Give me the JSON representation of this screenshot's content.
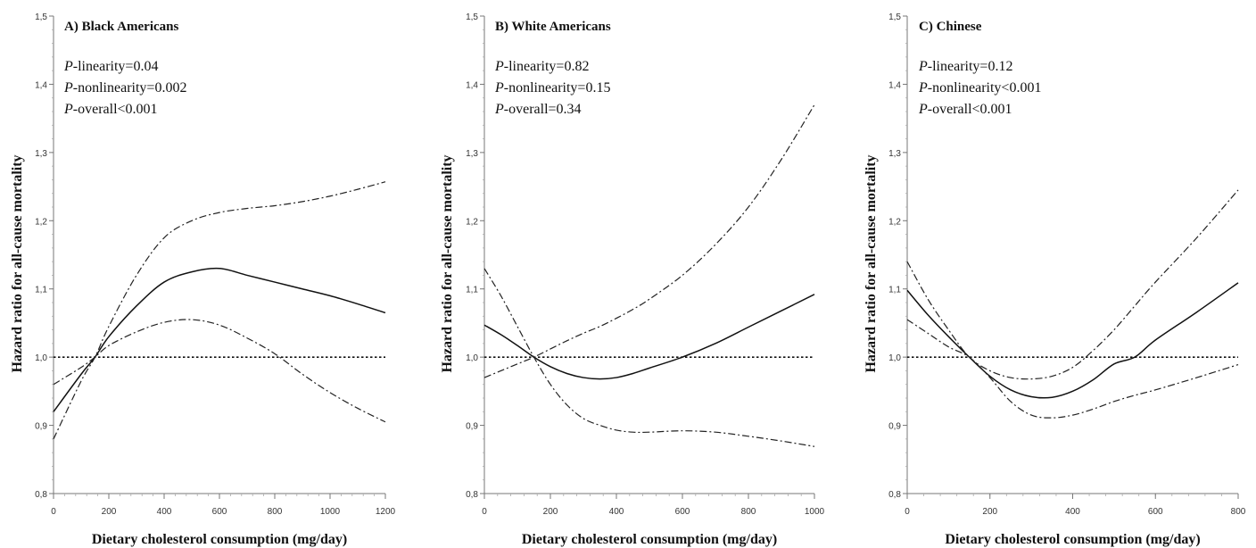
{
  "chart_data": [
    {
      "type": "line",
      "title": "A) Black Americans",
      "xlabel": "Dietary cholesterol consumption (mg/day)",
      "ylabel": "Hazard ratio for all-cause mortality",
      "xlim": [
        0,
        1200
      ],
      "ylim": [
        0.8,
        1.5
      ],
      "xticks": [
        0,
        200,
        400,
        600,
        800,
        1000,
        1200
      ],
      "yticks": [
        0.8,
        0.9,
        1.0,
        1.1,
        1.2,
        1.3,
        1.4,
        1.5
      ],
      "ytick_labels": [
        "0,8",
        "0,9",
        "1,0",
        "1,1",
        "1,2",
        "1,3",
        "1,4",
        "1,5"
      ],
      "reference_y": 1.0,
      "annotations": [
        {
          "p": "P",
          "text": "-linearity=0.04"
        },
        {
          "p": "P",
          "text": "-nonlinearity=0.002"
        },
        {
          "p": "P",
          "text": "-overall<0.001"
        }
      ],
      "series": [
        {
          "style": "solid",
          "x": [
            0,
            100,
            150,
            200,
            300,
            400,
            500,
            600,
            700,
            800,
            900,
            1000,
            1100,
            1200
          ],
          "y": [
            0.92,
            0.975,
            1.0,
            1.03,
            1.075,
            1.11,
            1.125,
            1.13,
            1.12,
            1.11,
            1.1,
            1.09,
            1.078,
            1.065
          ]
        },
        {
          "style": "dash-dot",
          "x": [
            0,
            100,
            150,
            200,
            300,
            400,
            500,
            600,
            700,
            800,
            900,
            1000,
            1100,
            1200
          ],
          "y": [
            0.88,
            0.965,
            1.0,
            1.045,
            1.12,
            1.175,
            1.2,
            1.212,
            1.218,
            1.222,
            1.228,
            1.236,
            1.246,
            1.257
          ]
        },
        {
          "style": "dash-dot",
          "x": [
            0,
            100,
            150,
            200,
            300,
            400,
            500,
            600,
            700,
            800,
            900,
            1000,
            1100,
            1200
          ],
          "y": [
            0.96,
            0.985,
            1.0,
            1.017,
            1.037,
            1.051,
            1.055,
            1.047,
            1.028,
            1.005,
            0.975,
            0.948,
            0.925,
            0.905
          ]
        }
      ]
    },
    {
      "type": "line",
      "title": "B) White Americans",
      "xlabel": "Dietary cholesterol consumption (mg/day)",
      "ylabel": "Hazard ratio for all-cause mortality",
      "xlim": [
        0,
        1000
      ],
      "ylim": [
        0.8,
        1.5
      ],
      "xticks": [
        0,
        200,
        400,
        600,
        800,
        1000
      ],
      "yticks": [
        0.8,
        0.9,
        1.0,
        1.1,
        1.2,
        1.3,
        1.4,
        1.5
      ],
      "ytick_labels": [
        "0,8",
        "0,9",
        "1,0",
        "1,1",
        "1,2",
        "1,3",
        "1,4",
        "1,5"
      ],
      "reference_y": 1.0,
      "annotations": [
        {
          "p": "P",
          "text": "-linearity=0.82"
        },
        {
          "p": "P",
          "text": "-nonlinearity=0.15"
        },
        {
          "p": "P",
          "text": "-overall=0.34"
        }
      ],
      "series": [
        {
          "style": "solid",
          "x": [
            0,
            50,
            100,
            150,
            200,
            250,
            300,
            350,
            400,
            450,
            500,
            600,
            700,
            800,
            900,
            1000
          ],
          "y": [
            1.047,
            1.033,
            1.017,
            1.0,
            0.986,
            0.976,
            0.97,
            0.968,
            0.97,
            0.976,
            0.984,
            1.0,
            1.02,
            1.044,
            1.068,
            1.092
          ]
        },
        {
          "style": "dash-dot",
          "x": [
            0,
            50,
            100,
            150,
            200,
            250,
            300,
            350,
            400,
            450,
            500,
            600,
            700,
            800,
            900,
            1000
          ],
          "y": [
            0.97,
            0.98,
            0.99,
            1.0,
            1.012,
            1.024,
            1.035,
            1.045,
            1.057,
            1.07,
            1.085,
            1.12,
            1.165,
            1.22,
            1.29,
            1.37
          ]
        },
        {
          "style": "dash-dot",
          "x": [
            0,
            50,
            100,
            150,
            200,
            250,
            300,
            350,
            400,
            450,
            500,
            600,
            700,
            800,
            900,
            1000
          ],
          "y": [
            1.13,
            1.09,
            1.045,
            1.0,
            0.96,
            0.93,
            0.91,
            0.9,
            0.893,
            0.89,
            0.89,
            0.892,
            0.89,
            0.884,
            0.877,
            0.869
          ]
        }
      ]
    },
    {
      "type": "line",
      "title": "C) Chinese",
      "xlabel": "Dietary cholesterol consumption (mg/day)",
      "ylabel": "Hazard ratio for all-cause mortality",
      "xlim": [
        0,
        800
      ],
      "ylim": [
        0.8,
        1.5
      ],
      "xticks": [
        0,
        200,
        400,
        600,
        800
      ],
      "yticks": [
        0.8,
        0.9,
        1.0,
        1.1,
        1.2,
        1.3,
        1.4,
        1.5
      ],
      "ytick_labels": [
        "0,8",
        "0,9",
        "1,0",
        "1,1",
        "1,2",
        "1,3",
        "1,4",
        "1,5"
      ],
      "reference_y": 1.0,
      "annotations": [
        {
          "p": "P",
          "text": "-linearity=0.12"
        },
        {
          "p": "P",
          "text": "-nonlinearity<0.001"
        },
        {
          "p": "P",
          "text": "-overall<0.001"
        }
      ],
      "series": [
        {
          "style": "solid",
          "x": [
            0,
            50,
            100,
            150,
            200,
            250,
            300,
            350,
            400,
            450,
            500,
            550,
            600,
            700,
            800
          ],
          "y": [
            1.098,
            1.062,
            1.03,
            1.0,
            0.972,
            0.952,
            0.942,
            0.941,
            0.95,
            0.967,
            0.99,
            1.0,
            1.025,
            1.066,
            1.109
          ]
        },
        {
          "style": "dash-dot",
          "x": [
            0,
            50,
            100,
            150,
            200,
            250,
            300,
            350,
            400,
            450,
            500,
            550,
            600,
            700,
            800
          ],
          "y": [
            1.14,
            1.085,
            1.04,
            1.0,
            0.98,
            0.97,
            0.968,
            0.972,
            0.985,
            1.01,
            1.04,
            1.075,
            1.11,
            1.175,
            1.245
          ]
        },
        {
          "style": "dash-dot",
          "x": [
            0,
            50,
            100,
            150,
            200,
            250,
            300,
            350,
            400,
            450,
            500,
            550,
            600,
            700,
            800
          ],
          "y": [
            1.055,
            1.035,
            1.015,
            1.0,
            0.97,
            0.935,
            0.915,
            0.911,
            0.915,
            0.924,
            0.935,
            0.944,
            0.952,
            0.97,
            0.989
          ]
        }
      ]
    }
  ]
}
